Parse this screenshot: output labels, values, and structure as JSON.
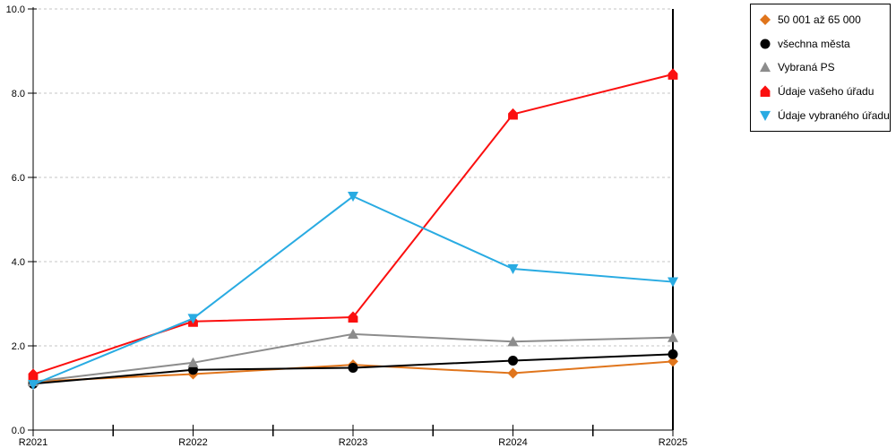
{
  "chart_data": {
    "type": "line",
    "categories": [
      "R2021",
      "R2022",
      "R2023",
      "R2024",
      "R2025"
    ],
    "series": [
      {
        "name": "50 001 až 65 000",
        "color": "#e0751c",
        "marker": "diamond",
        "values": [
          1.15,
          1.33,
          1.55,
          1.35,
          1.63
        ]
      },
      {
        "name": "všechna města",
        "color": "#000000",
        "marker": "circle",
        "values": [
          1.1,
          1.43,
          1.48,
          1.65,
          1.8
        ]
      },
      {
        "name": "Vybraná PS",
        "color": "#8c8c8c",
        "marker": "triangle-up",
        "values": [
          1.15,
          1.6,
          2.28,
          2.1,
          2.2
        ]
      },
      {
        "name": "Údaje vašeho úřadu",
        "color": "#fb0f0f",
        "marker": "pentagon",
        "values": [
          1.32,
          2.58,
          2.68,
          7.5,
          8.45
        ]
      },
      {
        "name": "Údaje vybraného úřadu",
        "color": "#29abe2",
        "marker": "triangle-down",
        "values": [
          1.08,
          2.65,
          5.55,
          3.83,
          3.52
        ]
      }
    ],
    "title": "",
    "xlabel": "",
    "ylabel": "",
    "ylim": [
      0,
      10
    ],
    "ytick_step": 2,
    "ytick_labels": [
      "0.0",
      "2.0",
      "4.0",
      "6.0",
      "8.0",
      "10.0"
    ],
    "grid": "horizontal-dashed",
    "gridline_color": "#c6c6c6",
    "axis_color": "#000000",
    "legend_position": "top-right"
  }
}
